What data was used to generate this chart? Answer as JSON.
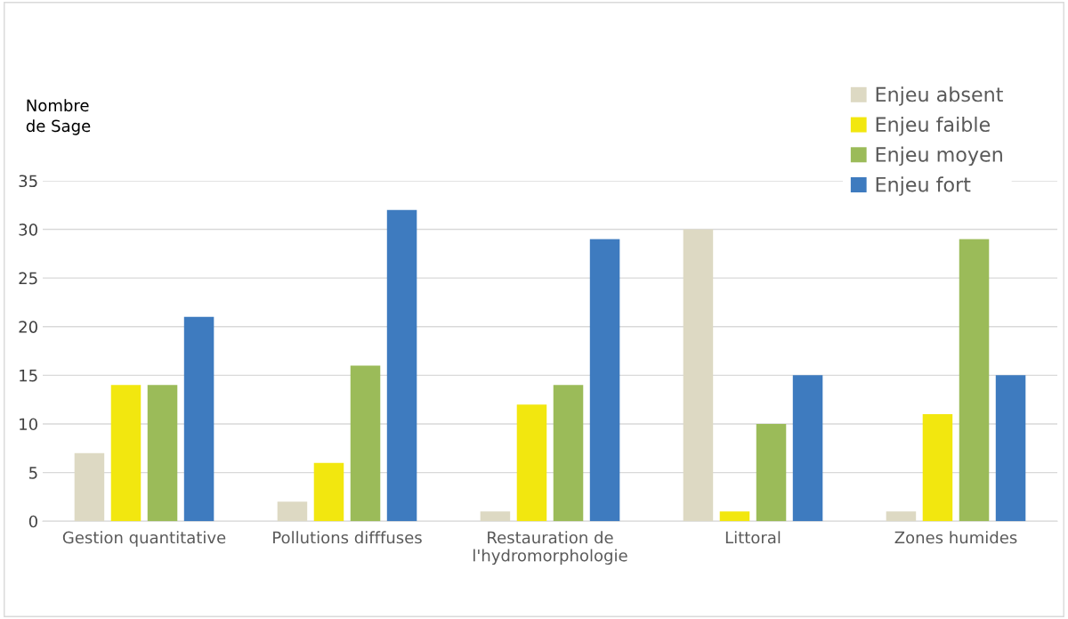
{
  "chart_data": {
    "type": "bar",
    "ylabel": "Nombre\nde Sage",
    "categories": [
      "Gestion quantitative",
      "Pollutions difffuses",
      "Restauration de\nl'hydromorphologie",
      "Littoral",
      "Zones humides"
    ],
    "series": [
      {
        "name": "Enjeu absent",
        "color": "#ddd9c3",
        "values": [
          7,
          2,
          1,
          30,
          1
        ]
      },
      {
        "name": "Enjeu faible",
        "color": "#f2e70f",
        "values": [
          14,
          6,
          12,
          1,
          11
        ]
      },
      {
        "name": "Enjeu moyen",
        "color": "#9bbb59",
        "values": [
          14,
          16,
          14,
          10,
          29
        ]
      },
      {
        "name": "Enjeu fort",
        "color": "#3e7bbf",
        "values": [
          21,
          32,
          29,
          15,
          15
        ]
      }
    ],
    "ylim": [
      0,
      35
    ],
    "yticks": [
      0,
      5,
      10,
      15,
      20,
      25,
      30,
      35
    ],
    "grid": "y",
    "legend": "top right"
  }
}
